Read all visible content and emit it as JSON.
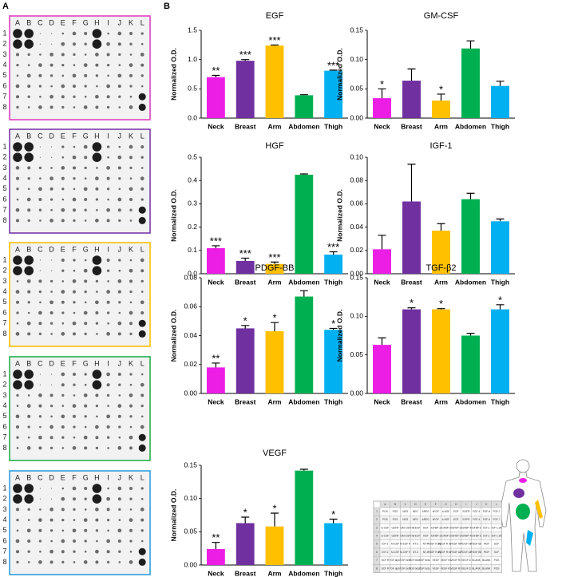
{
  "panel_labels": [
    "A",
    "B"
  ],
  "blot": {
    "columns": [
      "A",
      "B",
      "C",
      "D",
      "E",
      "F",
      "G",
      "H",
      "I",
      "J",
      "K",
      "L"
    ],
    "rows": [
      "1",
      "2",
      "3",
      "4",
      "5",
      "6",
      "7",
      "8"
    ]
  },
  "array_map": {
    "columns": [
      "A",
      "B",
      "C",
      "D",
      "E",
      "F",
      "G",
      "H",
      "I",
      "J",
      "K",
      "L"
    ],
    "rows": [
      {
        "label": "1",
        "cells": [
          "POS",
          "POS",
          "NEG",
          "NEG",
          "AREG",
          "bFGF",
          "b-NGF",
          "EGF",
          "EGFR",
          "FGF-4",
          "FGF-6",
          "FGF-7"
        ]
      },
      {
        "label": "2",
        "cells": [
          "POS",
          "POS",
          "NEG",
          "NEG",
          "AREG",
          "bFGF",
          "b-NGF",
          "EGF",
          "EGFR",
          "FGF-4",
          "FGF-6",
          "FGF-7"
        ]
      },
      {
        "label": "3",
        "cells": [
          "G-CSF",
          "GDNF",
          "GM-CSF",
          "HB-EGF",
          "HGF",
          "IGFBP-1",
          "IGFBP-2",
          "IGFBP-3",
          "IGFBP-4",
          "IGFBP-6",
          "IGF-1",
          "IGF-1 sR"
        ]
      },
      {
        "label": "4",
        "cells": [
          "G-CSF",
          "GDNF",
          "GM-CSF",
          "HB-EGF",
          "HGF",
          "IGFBP-1",
          "IGFBP-2",
          "IGFBP-3",
          "IGFBP-4",
          "IGFBP-6",
          "IGF-1",
          "IGF-1 sR"
        ]
      },
      {
        "label": "5",
        "cells": [
          "IGF-2",
          "M-CSF",
          "M-CSF R",
          "NT-3",
          "NT-4",
          "PDGF R alpha",
          "PDGF R beta",
          "PDGF AA",
          "PDGF AB",
          "PDGF BB",
          "PlGF",
          "SCF"
        ]
      },
      {
        "label": "6",
        "cells": [
          "IGF-2",
          "M-CSF",
          "M-CSF R",
          "NT-3",
          "NT-4",
          "PDGF R alpha",
          "PDGF R beta",
          "PDGF AA",
          "PDGF AB",
          "PDGF BB",
          "PlGF",
          "SCF"
        ]
      },
      {
        "label": "7",
        "cells": [
          "SCF R",
          "TGF alpha",
          "TGF beta",
          "TGF beta 2",
          "TGF beta 3",
          "VEGF",
          "VEGF R2",
          "VEGF R3",
          "VEGF D",
          "BLANK",
          "BLANK",
          "POS"
        ]
      },
      {
        "label": "8",
        "cells": [
          "SCF R",
          "TGF alpha",
          "TGF beta",
          "TGF beta 2",
          "TGF beta 3",
          "VEGF",
          "VEGF R2",
          "VEGF R3",
          "VEGF D",
          "BLANK",
          "BLANK",
          "POS"
        ]
      }
    ]
  },
  "chart_data": [
    {
      "type": "bar",
      "title": "EGF",
      "ylabel": "Normalized O.D.",
      "categories": [
        "Neck",
        "Breast",
        "Arm",
        "Abdomen",
        "Thigh"
      ],
      "values": [
        0.7,
        0.98,
        1.24,
        0.39,
        0.81
      ],
      "errors": [
        0.03,
        0.02,
        0.01,
        0.01,
        0.01
      ],
      "annotations": [
        "**",
        "***",
        "***",
        null,
        "***"
      ],
      "colors": [
        "#ec1ee6",
        "#7030a0",
        "#ffc000",
        "#00b050",
        "#00b0f0"
      ],
      "ylim": [
        0,
        1.5
      ],
      "yticks": [
        {
          "value": 0,
          "label": "0.0"
        },
        {
          "value": 0.5,
          "label": "0.5"
        },
        {
          "value": 1,
          "label": "1.0"
        },
        {
          "value": 1.5,
          "label": "1.5"
        }
      ]
    },
    {
      "type": "bar",
      "title": "GM-CSF",
      "ylabel": "Normalized O.D.",
      "categories": [
        "Neck",
        "Breast",
        "Arm",
        "Abdomen",
        "Thigh"
      ],
      "values": [
        0.034,
        0.064,
        0.03,
        0.119,
        0.055
      ],
      "errors": [
        0.016,
        0.02,
        0.011,
        0.013,
        0.008
      ],
      "annotations": [
        "*",
        null,
        "*",
        null,
        null
      ],
      "colors": [
        "#ec1ee6",
        "#7030a0",
        "#ffc000",
        "#00b050",
        "#00b0f0"
      ],
      "ylim": [
        0,
        0.15
      ],
      "yticks": [
        {
          "value": 0,
          "label": "0.00"
        },
        {
          "value": 0.05,
          "label": "0.05"
        },
        {
          "value": 0.1,
          "label": "0.10"
        },
        {
          "value": 0.15,
          "label": "0.15"
        }
      ]
    },
    {
      "type": "bar",
      "title": "HGF",
      "ylabel": "Normalized O.D.",
      "categories": [
        "Neck",
        "Breast",
        "Arm",
        "Abdomen",
        "Thigh"
      ],
      "values": [
        0.11,
        0.055,
        0.042,
        0.425,
        0.082
      ],
      "errors": [
        0.01,
        0.012,
        0.008,
        0.003,
        0.012
      ],
      "annotations": [
        "***",
        "***",
        "***",
        null,
        "***"
      ],
      "colors": [
        "#ec1ee6",
        "#7030a0",
        "#ffc000",
        "#00b050",
        "#00b0f0"
      ],
      "ylim": [
        0,
        0.5
      ],
      "yticks": [
        {
          "value": 0,
          "label": "0.0"
        },
        0.1,
        0.2,
        0.3,
        0.4,
        0.5
      ]
    },
    {
      "type": "bar",
      "title": "IGF-1",
      "ylabel": "Normalized O.D.",
      "categories": [
        "Neck",
        "Breast",
        "Arm",
        "Abdomen",
        "Thigh"
      ],
      "values": [
        0.021,
        0.062,
        0.037,
        0.064,
        0.045
      ],
      "errors": [
        0.012,
        0.032,
        0.006,
        0.005,
        0.002
      ],
      "annotations": [
        null,
        null,
        null,
        null,
        null
      ],
      "colors": [
        "#ec1ee6",
        "#7030a0",
        "#ffc000",
        "#00b050",
        "#00b0f0"
      ],
      "ylim": [
        0,
        0.1
      ],
      "yticks": [
        {
          "value": 0,
          "label": "0.00"
        },
        {
          "value": 0.02,
          "label": "0.02"
        },
        {
          "value": 0.04,
          "label": "0.04"
        },
        {
          "value": 0.06,
          "label": "0.06"
        },
        {
          "value": 0.08,
          "label": "0.08"
        },
        {
          "value": 0.1,
          "label": "0.10"
        }
      ]
    },
    {
      "type": "bar",
      "title": "PDGF-BB",
      "ylabel": "Normalized O.D.",
      "categories": [
        "Neck",
        "Breast",
        "Arm",
        "Abdomen",
        "Thigh"
      ],
      "values": [
        0.018,
        0.045,
        0.043,
        0.067,
        0.044
      ],
      "errors": [
        0.003,
        0.002,
        0.006,
        0.004,
        0.001
      ],
      "annotations": [
        "**",
        "*",
        "*",
        null,
        "*"
      ],
      "colors": [
        "#ec1ee6",
        "#7030a0",
        "#ffc000",
        "#00b050",
        "#00b0f0"
      ],
      "ylim": [
        0,
        0.08
      ],
      "yticks": [
        {
          "value": 0,
          "label": "0.00"
        },
        {
          "value": 0.02,
          "label": "0.02"
        },
        {
          "value": 0.04,
          "label": "0.04"
        },
        {
          "value": 0.06,
          "label": "0.06"
        },
        {
          "value": 0.08,
          "label": "0.08"
        }
      ]
    },
    {
      "type": "bar",
      "title": "TGF-β2",
      "ylabel": "Normalized O.D.",
      "categories": [
        "Neck",
        "Breast",
        "Arm",
        "Abdomen",
        "Thigh"
      ],
      "values": [
        0.063,
        0.109,
        0.109,
        0.075,
        0.109
      ],
      "errors": [
        0.009,
        0.002,
        0.001,
        0.003,
        0.006
      ],
      "annotations": [
        null,
        "*",
        "*",
        null,
        "*"
      ],
      "colors": [
        "#ec1ee6",
        "#7030a0",
        "#ffc000",
        "#00b050",
        "#00b0f0"
      ],
      "ylim": [
        0,
        0.15
      ],
      "yticks": [
        {
          "value": 0,
          "label": "0.00"
        },
        {
          "value": 0.05,
          "label": "0.05"
        },
        {
          "value": 0.1,
          "label": "0.10"
        },
        {
          "value": 0.15,
          "label": "0.15"
        }
      ]
    },
    {
      "type": "bar",
      "title": "VEGF",
      "ylabel": "Normalized O.D.",
      "categories": [
        "Neck",
        "Breast",
        "Arm",
        "Abdomen",
        "Thigh"
      ],
      "values": [
        0.024,
        0.063,
        0.058,
        0.142,
        0.063
      ],
      "errors": [
        0.01,
        0.009,
        0.02,
        0.002,
        0.006
      ],
      "annotations": [
        "**",
        "*",
        "*",
        null,
        "*"
      ],
      "colors": [
        "#ec1ee6",
        "#7030a0",
        "#ffc000",
        "#00b050",
        "#00b0f0"
      ],
      "ylim": [
        0,
        0.15
      ],
      "yticks": [
        {
          "value": 0,
          "label": "0.00"
        },
        {
          "value": 0.05,
          "label": "0.05"
        },
        {
          "value": 0.1,
          "label": "0.10"
        },
        {
          "value": 0.15,
          "label": "0.15"
        }
      ]
    }
  ]
}
